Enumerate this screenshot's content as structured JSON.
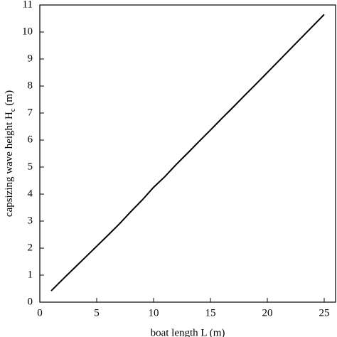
{
  "chart_data": {
    "type": "line",
    "x_label": "boat length L (m)",
    "y_label": {
      "text": "capsizing wave height  H",
      "sub": "c",
      "unit": " (m)"
    },
    "x": [
      1,
      2,
      3,
      4,
      5,
      6,
      7,
      8,
      9,
      10,
      11,
      12,
      13,
      14,
      15,
      16,
      17,
      18,
      19,
      20,
      21,
      22,
      23,
      24,
      25
    ],
    "series": [
      {
        "color": "#000000",
        "values": [
          0.42,
          0.84,
          1.25,
          1.66,
          2.07,
          2.48,
          2.9,
          3.35,
          3.78,
          4.25,
          4.65,
          5.1,
          5.52,
          5.95,
          6.37,
          6.8,
          7.22,
          7.65,
          8.07,
          8.5,
          8.93,
          9.36,
          9.79,
          10.22,
          10.65
        ]
      }
    ],
    "xlim": [
      0,
      26
    ],
    "ylim": [
      0,
      11
    ],
    "xticks": [
      0,
      5,
      10,
      15,
      20,
      25
    ],
    "yticks": [
      0,
      1,
      2,
      3,
      4,
      5,
      6,
      7,
      8,
      9,
      10,
      11
    ],
    "grid": false
  }
}
